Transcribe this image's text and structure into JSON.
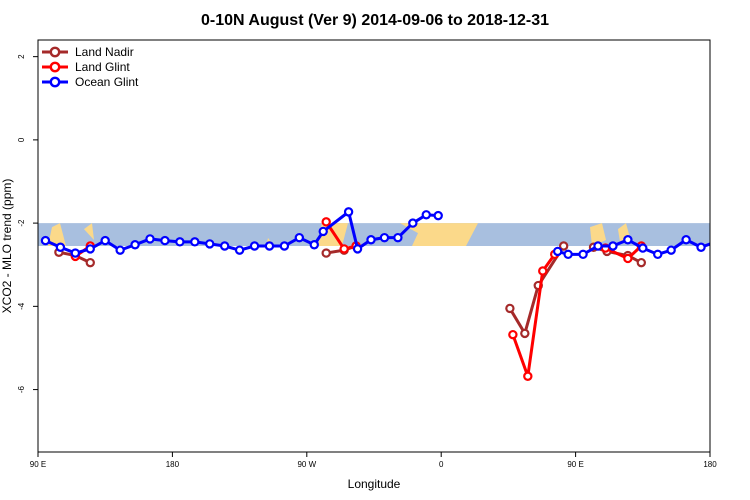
{
  "chart_data": {
    "type": "line",
    "title": "0-10N August (Ver 9)   2014-09-06 to 2018-12-31",
    "xlabel": "Longitude",
    "ylabel": "XCO2 - MLO trend (ppm)",
    "xlim": [
      90,
      540
    ],
    "ylim": [
      -7.5,
      2.4
    ],
    "x_ticks": [
      {
        "value": 90,
        "label": "90 E"
      },
      {
        "value": 180,
        "label": "180"
      },
      {
        "value": 270,
        "label": "90 W"
      },
      {
        "value": 360,
        "label": "0"
      },
      {
        "value": 450,
        "label": "90 E"
      },
      {
        "value": 540,
        "label": "180"
      }
    ],
    "y_ticks": [
      {
        "value": 2,
        "label": "2"
      },
      {
        "value": 0,
        "label": "0"
      },
      {
        "value": -2,
        "label": "-2"
      },
      {
        "value": -4,
        "label": "-4"
      },
      {
        "value": -6,
        "label": "-6"
      }
    ],
    "band": {
      "ymin": -2.55,
      "ymax": -2.0,
      "ocean_color": "#a8bfdf",
      "land_color": "#fbd98a"
    },
    "legend_position": "top-left",
    "series": [
      {
        "name": "Land Nadir",
        "color": "#a52a2a",
        "segments": [
          [
            [
              104,
              -2.7
            ],
            [
              115,
              -2.78
            ],
            [
              125,
              -2.95
            ]
          ],
          [
            [
              283,
              -2.72
            ],
            [
              295,
              -2.65
            ],
            [
              303,
              -2.55
            ]
          ],
          [
            [
              406,
              -4.05
            ],
            [
              416,
              -4.65
            ],
            [
              425,
              -3.5
            ],
            [
              442,
              -2.55
            ]
          ],
          [
            [
              462,
              -2.58
            ],
            [
              471,
              -2.68
            ],
            [
              485,
              -2.78
            ],
            [
              494,
              -2.95
            ]
          ]
        ]
      },
      {
        "name": "Land Glint",
        "color": "#ff0000",
        "segments": [
          [
            [
              115,
              -2.8
            ],
            [
              125,
              -2.55
            ]
          ],
          [
            [
              283,
              -1.97
            ],
            [
              295,
              -2.62
            ],
            [
              303,
              -2.55
            ]
          ],
          [
            [
              408,
              -4.68
            ],
            [
              418,
              -5.68
            ],
            [
              428,
              -3.15
            ],
            [
              436,
              -2.75
            ]
          ],
          [
            [
              470,
              -2.6
            ],
            [
              485,
              -2.85
            ],
            [
              494,
              -2.55
            ]
          ]
        ]
      },
      {
        "name": "Ocean Glint",
        "color": "#0000ff",
        "segments": [
          [
            [
              95,
              -2.42
            ],
            [
              105,
              -2.58
            ],
            [
              115,
              -2.72
            ],
            [
              125,
              -2.62
            ],
            [
              135,
              -2.42
            ],
            [
              145,
              -2.65
            ],
            [
              155,
              -2.52
            ],
            [
              165,
              -2.38
            ],
            [
              175,
              -2.42
            ],
            [
              185,
              -2.45
            ],
            [
              195,
              -2.45
            ],
            [
              205,
              -2.5
            ],
            [
              215,
              -2.55
            ],
            [
              225,
              -2.65
            ],
            [
              235,
              -2.55
            ],
            [
              245,
              -2.55
            ],
            [
              255,
              -2.55
            ],
            [
              265,
              -2.35
            ],
            [
              275,
              -2.52
            ],
            [
              281,
              -2.2
            ],
            [
              298,
              -1.73
            ],
            [
              304,
              -2.62
            ],
            [
              313,
              -2.4
            ],
            [
              322,
              -2.35
            ],
            [
              331,
              -2.35
            ],
            [
              341,
              -2.0
            ],
            [
              350,
              -1.8
            ],
            [
              358,
              -1.82
            ]
          ],
          [
            [
              438,
              -2.68
            ],
            [
              445,
              -2.75
            ],
            [
              455,
              -2.75
            ],
            [
              465,
              -2.55
            ],
            [
              475,
              -2.55
            ],
            [
              485,
              -2.4
            ],
            [
              495,
              -2.6
            ],
            [
              505,
              -2.75
            ],
            [
              514,
              -2.65
            ],
            [
              524,
              -2.4
            ],
            [
              534,
              -2.58
            ],
            [
              544,
              -2.45
            ],
            [
              554,
              -2.35
            ],
            [
              564,
              -2.42
            ]
          ]
        ]
      }
    ]
  }
}
